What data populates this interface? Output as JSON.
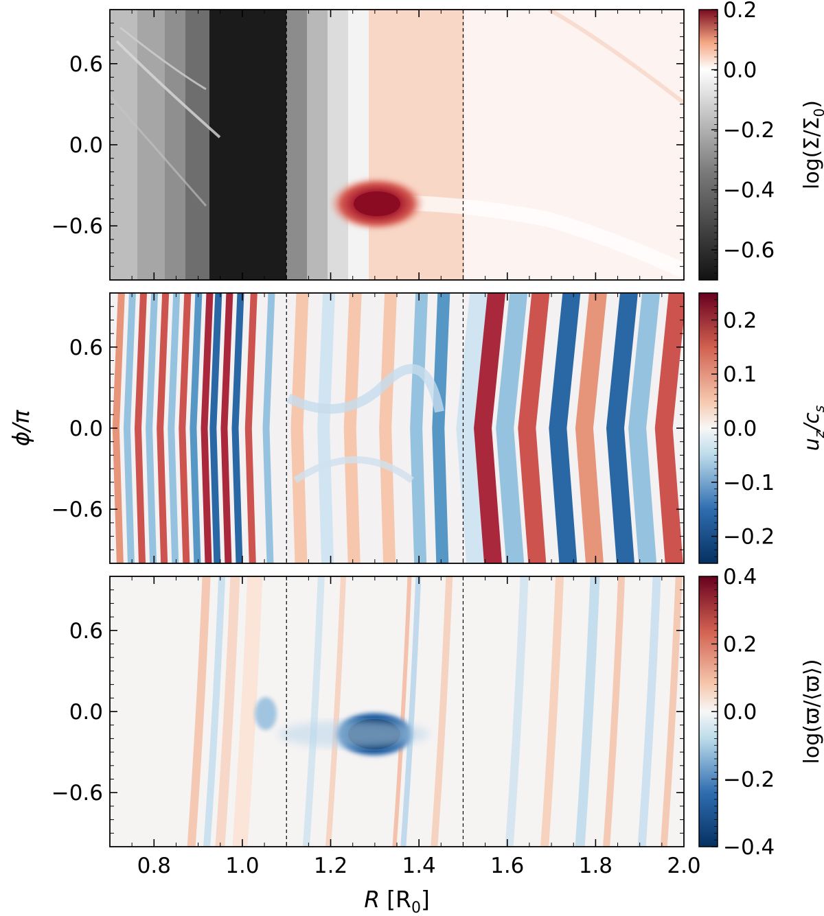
{
  "chart_data": [
    {
      "type": "heatmap",
      "panel": "top",
      "quantity": "surface density",
      "xlim": [
        0.7,
        2.0
      ],
      "ylim": [
        -1.0,
        1.0
      ],
      "yticks": [
        -0.6,
        0.0,
        0.6
      ],
      "ytick_labels": [
        "−0.6",
        "0.0",
        "0.6"
      ],
      "ylabel": "",
      "vlines": [
        1.1,
        1.5
      ],
      "colormap": "gray-white-red (gray below 0, red above 0)",
      "colorbar": {
        "label": "log(Σ/Σ₀)",
        "label_main": "log(Σ/Σ",
        "label_sub": "0",
        "label_end": ")",
        "range": [
          -0.7,
          0.2
        ],
        "ticks": [
          0.2,
          0.0,
          -0.2,
          -0.4,
          -0.6
        ],
        "tick_labels": [
          "0.2",
          "0.0",
          "−0.2",
          "−0.4",
          "−0.6"
        ]
      },
      "features": [
        {
          "kind": "low-density gap (dark)",
          "R_range": [
            0.95,
            1.1
          ],
          "phi_over_pi": "all"
        },
        {
          "kind": "vortex (density maximum)",
          "R": 1.31,
          "phi_over_pi": -0.45,
          "value": 0.2
        },
        {
          "kind": "elevated ring",
          "R_range": [
            1.25,
            1.5
          ],
          "value": 0.05
        }
      ]
    },
    {
      "type": "heatmap",
      "panel": "middle",
      "quantity": "vertical velocity",
      "xlim": [
        0.7,
        2.0
      ],
      "ylim": [
        -1.0,
        1.0
      ],
      "yticks": [
        -0.6,
        0.0,
        0.6
      ],
      "ytick_labels": [
        "−0.6",
        "0.0",
        "0.6"
      ],
      "ylabel": "ϕ/π",
      "vlines": [
        1.1,
        1.5
      ],
      "colormap": "RdBu_r",
      "colorbar": {
        "label": "u_z/c_s",
        "range": [
          -0.25,
          0.25
        ],
        "ticks": [
          0.2,
          0.1,
          0.0,
          -0.1,
          -0.2
        ],
        "tick_labels": [
          "0.2",
          "0.1",
          "0.0",
          "−0.1",
          "−0.2"
        ]
      },
      "features": [
        {
          "kind": "vertical stripes (alternating sign)",
          "R_range": [
            0.7,
            1.05
          ]
        },
        {
          "kind": "strong bands",
          "R": [
            1.56,
            1.73,
            1.86,
            1.97
          ],
          "sign": [
            "+",
            "−",
            "−",
            "+"
          ]
        }
      ]
    },
    {
      "type": "heatmap",
      "panel": "bottom",
      "quantity": "vortensity perturbation",
      "xlim": [
        0.7,
        2.0
      ],
      "ylim": [
        -1.0,
        1.0
      ],
      "xticks": [
        0.8,
        1.0,
        1.2,
        1.4,
        1.6,
        1.8,
        2.0
      ],
      "xtick_labels": [
        "0.8",
        "1.0",
        "1.2",
        "1.4",
        "1.6",
        "1.8",
        "2.0"
      ],
      "yticks": [
        -0.6,
        0.0,
        0.6
      ],
      "ytick_labels": [
        "−0.6",
        "0.0",
        "0.6"
      ],
      "xlabel": "R [R₀]",
      "ylabel": "",
      "vlines": [
        1.1,
        1.5
      ],
      "colormap": "RdBu_r",
      "colorbar": {
        "label": "log(ϖ/⟨ϖ⟩)",
        "range": [
          -0.4,
          0.4
        ],
        "ticks": [
          0.4,
          0.2,
          0.0,
          -0.2,
          -0.4
        ],
        "tick_labels": [
          "0.4",
          "0.2",
          "0.0",
          "−0.2",
          "−0.4"
        ]
      },
      "features": [
        {
          "kind": "vortex (vortensity minimum)",
          "R": 1.31,
          "phi_over_pi": -0.45,
          "value": -0.4
        }
      ]
    }
  ],
  "axes": {
    "xlabel_main": "R",
    "xlabel_unit_main": "[R",
    "xlabel_unit_sub": "0",
    "xlabel_unit_end": "]",
    "ylabel": "ϕ/π"
  }
}
